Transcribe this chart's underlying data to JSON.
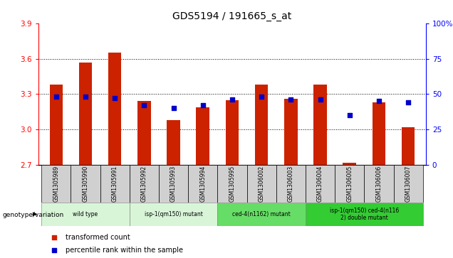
{
  "title": "GDS5194 / 191665_s_at",
  "samples": [
    "GSM1305989",
    "GSM1305990",
    "GSM1305991",
    "GSM1305992",
    "GSM1305993",
    "GSM1305994",
    "GSM1305995",
    "GSM1306002",
    "GSM1306003",
    "GSM1306004",
    "GSM1306005",
    "GSM1306006",
    "GSM1306007"
  ],
  "bar_values": [
    3.38,
    3.57,
    3.65,
    3.24,
    3.08,
    3.19,
    3.25,
    3.38,
    3.26,
    3.38,
    2.72,
    3.23,
    3.02
  ],
  "dot_values": [
    48,
    48,
    47,
    42,
    40,
    42,
    46,
    48,
    46,
    46,
    35,
    45,
    44
  ],
  "bar_bottom": 2.7,
  "ylim_left": [
    2.7,
    3.9
  ],
  "ylim_right": [
    0,
    100
  ],
  "yticks_left": [
    2.7,
    3.0,
    3.3,
    3.6,
    3.9
  ],
  "yticks_right": [
    0,
    25,
    50,
    75,
    100
  ],
  "bar_color": "#cc2200",
  "dot_color": "#0000cc",
  "groups": [
    {
      "label": "wild type",
      "start": 0,
      "end": 3,
      "color": "#d8f5d8"
    },
    {
      "label": "isp-1(qm150) mutant",
      "start": 3,
      "end": 6,
      "color": "#d8f5d8"
    },
    {
      "label": "ced-4(n1162) mutant",
      "start": 6,
      "end": 9,
      "color": "#66dd66"
    },
    {
      "label": "isp-1(qm150) ced-4(n116\n2) double mutant",
      "start": 9,
      "end": 13,
      "color": "#33cc33"
    }
  ],
  "genotype_label": "genotype/variation",
  "legend_bar_label": "transformed count",
  "legend_dot_label": "percentile rank within the sample"
}
